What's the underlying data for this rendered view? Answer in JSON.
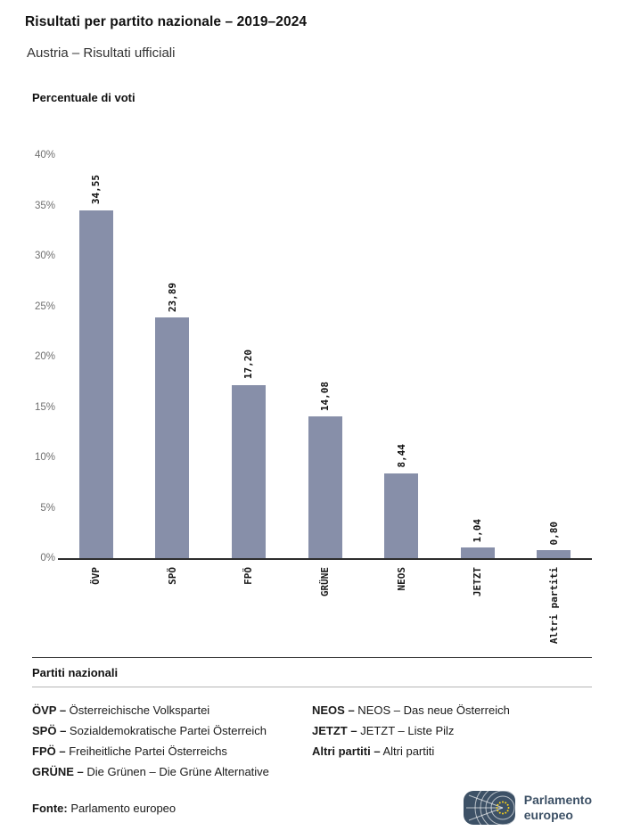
{
  "header": {
    "title": "Risultati per partito nazionale – 2019–2024",
    "subtitle": "Austria – Risultati ufficiali"
  },
  "chart_data": {
    "type": "bar",
    "title": "Percentuale di voti",
    "categories": [
      "ÖVP",
      "SPÖ",
      "FPÖ",
      "GRÜNE",
      "NEOS",
      "JETZT",
      "Altri partiti"
    ],
    "values": [
      34.55,
      23.89,
      17.2,
      14.08,
      8.44,
      1.04,
      0.8
    ],
    "value_labels": [
      "34,55",
      "23,89",
      "17,20",
      "14,08",
      "8,44",
      "1,04",
      "0,80"
    ],
    "y_ticks": [
      "0%",
      "5%",
      "10%",
      "15%",
      "20%",
      "25%",
      "30%",
      "35%",
      "40%"
    ],
    "ylim": [
      0,
      40
    ],
    "xlabel": "",
    "ylabel": "Percentuale di voti",
    "grid": false,
    "legend_position": "none",
    "bar_color": "#878FA9"
  },
  "legend": {
    "heading": "Partiti nazionali",
    "columns": [
      [
        {
          "abbr": "ÖVP",
          "name": "Österreichische Volkspartei"
        },
        {
          "abbr": "SPÖ",
          "name": "Sozialdemokratische Partei Österreich"
        },
        {
          "abbr": "FPÖ",
          "name": "Freiheitliche Partei Österreichs"
        },
        {
          "abbr": "GRÜNE",
          "name": "Die Grünen – Die Grüne Alternative"
        }
      ],
      [
        {
          "abbr": "NEOS",
          "name": "NEOS – Das neue Österreich"
        },
        {
          "abbr": "JETZT",
          "name": "JETZT – Liste Pilz"
        },
        {
          "abbr": "Altri partiti",
          "name": "Altri partiti"
        }
      ]
    ]
  },
  "footer": {
    "source_label": "Fonte:",
    "source_value": " Parlamento europeo",
    "logo_line1": "Parlamento",
    "logo_line2": "europeo",
    "logo_color": "#3d5166",
    "star_color": "#ffd617"
  }
}
